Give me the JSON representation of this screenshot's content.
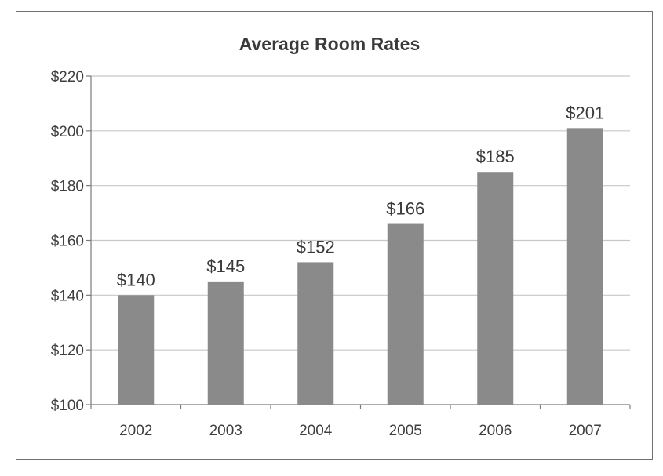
{
  "chart_data": {
    "type": "bar",
    "title": "Average Room Rates",
    "xlabel": "",
    "ylabel": "",
    "categories": [
      "2002",
      "2003",
      "2004",
      "2005",
      "2006",
      "2007"
    ],
    "values": [
      140,
      145,
      152,
      166,
      185,
      201
    ],
    "data_labels": [
      "$140",
      "$145",
      "$152",
      "$166",
      "$185",
      "$201"
    ],
    "ylim": [
      100,
      220
    ],
    "yticks": [
      100,
      120,
      140,
      160,
      180,
      200,
      220
    ],
    "ytick_labels": [
      "$100",
      "$120",
      "$140",
      "$160",
      "$180",
      "$200",
      "$220"
    ],
    "grid": true,
    "legend": "none",
    "colors": {
      "bar": "#8a8a8a",
      "grid": "#c8c8c8",
      "axis": "#7a7a7a",
      "frame": "#6f6f6f"
    }
  }
}
